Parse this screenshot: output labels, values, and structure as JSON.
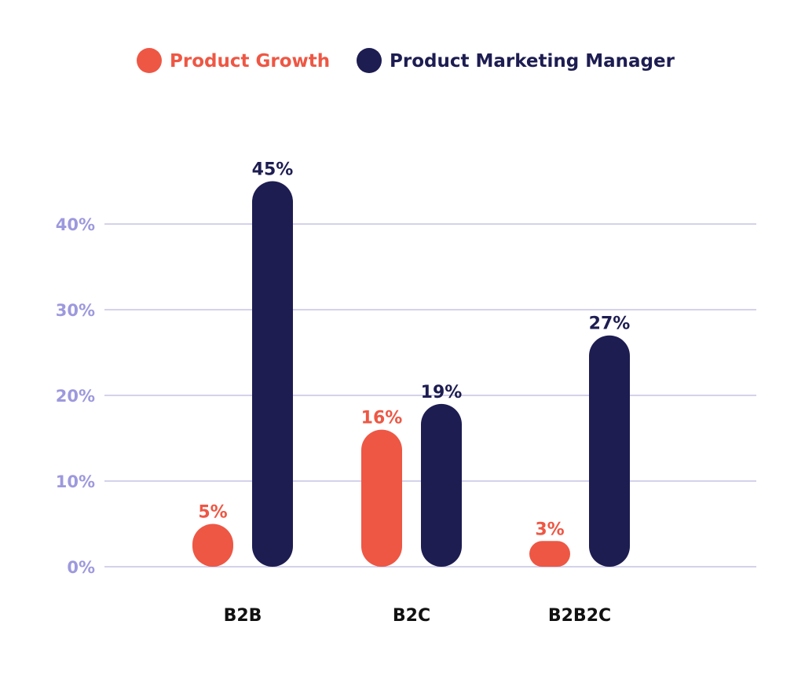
{
  "colors": {
    "series_1": "#EE5744",
    "series_2": "#1D1D52",
    "tick_text": "#9D99DD",
    "grid": "#A8A6D6",
    "category_text": "#111111"
  },
  "chart_data": {
    "type": "bar",
    "categories": [
      "B2B",
      "B2C",
      "B2B2C"
    ],
    "series": [
      {
        "name": "Product Growth",
        "values": [
          5,
          16,
          3
        ],
        "labels": [
          "5%",
          "16%",
          "3%"
        ]
      },
      {
        "name": "Product Marketing Manager",
        "values": [
          45,
          19,
          27
        ],
        "labels": [
          "45%",
          "19%",
          "27%"
        ]
      }
    ],
    "ylim": [
      0,
      40
    ],
    "yticks": [
      0,
      10,
      20,
      30,
      40
    ],
    "ytick_labels": [
      "0%",
      "10%",
      "20%",
      "30%",
      "40%"
    ],
    "title": "",
    "xlabel": "",
    "ylabel": "",
    "grid": true,
    "legend": "top-center"
  }
}
